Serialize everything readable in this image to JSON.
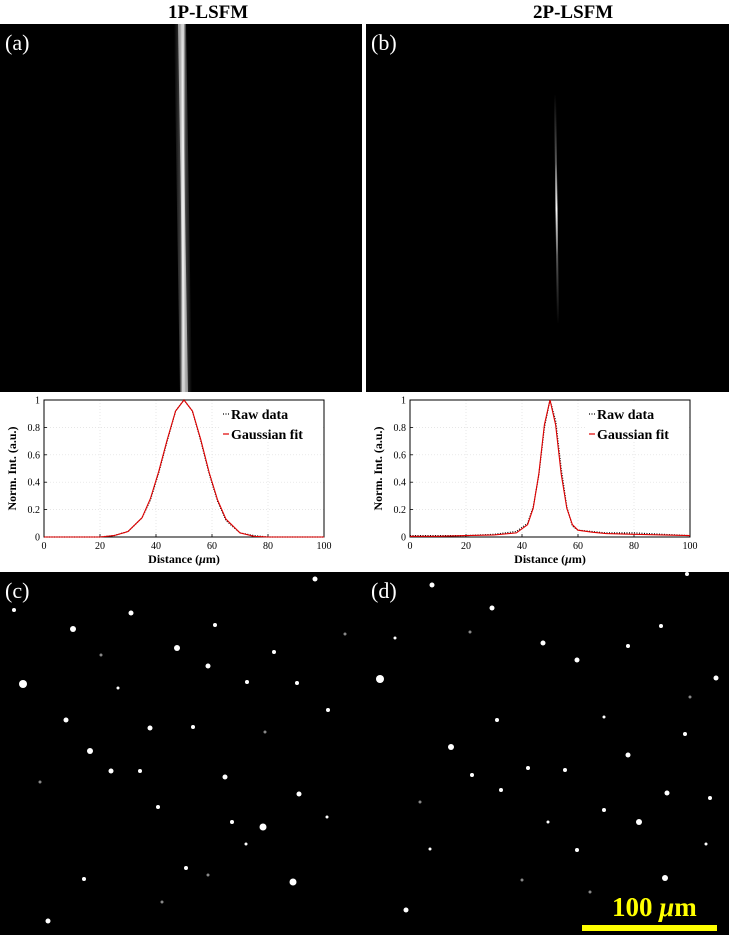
{
  "figure": {
    "title_left": "1P-LSFM",
    "title_right": "2P-LSFM",
    "labels": {
      "a": "(a)",
      "b": "(b)",
      "c": "(c)",
      "d": "(d)"
    },
    "scale_bar": {
      "value": "100",
      "unit_prefix": "μ",
      "unit_suffix": "m",
      "color": "#ffff00"
    }
  },
  "chart_data": [
    {
      "type": "line",
      "panel": "a",
      "xlabel_prefix": "Distance (",
      "xlabel_unit": "μm",
      "xlabel_suffix": ")",
      "ylabel": "Norm. Int. (a.u.)",
      "xlim": [
        0,
        100
      ],
      "ylim": [
        0,
        1
      ],
      "xticks": [
        0,
        20,
        40,
        60,
        80,
        100
      ],
      "yticks": [
        0,
        0.2,
        0.4,
        0.6,
        0.8,
        1
      ],
      "legend_position": "top-right",
      "series": [
        {
          "name": "Raw data",
          "style": "dotted",
          "color": "#000000",
          "x": [
            0,
            10,
            20,
            25,
            30,
            35,
            38,
            41,
            44,
            47,
            50,
            53,
            56,
            59,
            62,
            65,
            70,
            75,
            80,
            90,
            100
          ],
          "y": [
            0,
            0,
            0,
            0.01,
            0.04,
            0.14,
            0.27,
            0.47,
            0.7,
            0.92,
            1.0,
            0.92,
            0.7,
            0.46,
            0.26,
            0.12,
            0.03,
            0.01,
            0,
            0,
            0
          ]
        },
        {
          "name": "Gaussian fit",
          "style": "solid",
          "color": "#e00000",
          "x": [
            0,
            10,
            20,
            25,
            30,
            35,
            38,
            41,
            44,
            47,
            50,
            53,
            56,
            59,
            62,
            65,
            70,
            75,
            80,
            90,
            100
          ],
          "y": [
            0,
            0,
            0,
            0.01,
            0.04,
            0.14,
            0.28,
            0.48,
            0.71,
            0.92,
            1.0,
            0.92,
            0.71,
            0.47,
            0.27,
            0.13,
            0.03,
            0.005,
            0,
            0,
            0
          ]
        }
      ]
    },
    {
      "type": "line",
      "panel": "b",
      "xlabel_prefix": "Distance (",
      "xlabel_unit": "μm",
      "xlabel_suffix": ")",
      "ylabel": "Norm. Int. (a.u.)",
      "xlim": [
        0,
        100
      ],
      "ylim": [
        0,
        1
      ],
      "xticks": [
        0,
        20,
        40,
        60,
        80,
        100
      ],
      "yticks": [
        0,
        0.2,
        0.4,
        0.6,
        0.8,
        1
      ],
      "legend_position": "top-right",
      "series": [
        {
          "name": "Raw data",
          "style": "dotted",
          "color": "#000000",
          "x": [
            0,
            10,
            20,
            30,
            38,
            42,
            44,
            46,
            48,
            50,
            52,
            54,
            56,
            58,
            60,
            65,
            70,
            80,
            90,
            100
          ],
          "y": [
            0.01,
            0.01,
            0.01,
            0.02,
            0.04,
            0.1,
            0.22,
            0.45,
            0.8,
            1.0,
            0.85,
            0.5,
            0.22,
            0.08,
            0.05,
            0.04,
            0.03,
            0.03,
            0.02,
            0.01
          ]
        },
        {
          "name": "Gaussian fit",
          "style": "solid",
          "color": "#e00000",
          "x": [
            0,
            10,
            20,
            30,
            38,
            42,
            44,
            46,
            48,
            50,
            52,
            54,
            56,
            58,
            60,
            65,
            70,
            80,
            90,
            100
          ],
          "y": [
            0.005,
            0.005,
            0.01,
            0.015,
            0.03,
            0.09,
            0.21,
            0.46,
            0.82,
            1.0,
            0.82,
            0.46,
            0.21,
            0.09,
            0.05,
            0.035,
            0.025,
            0.02,
            0.015,
            0.01
          ]
        }
      ]
    }
  ]
}
